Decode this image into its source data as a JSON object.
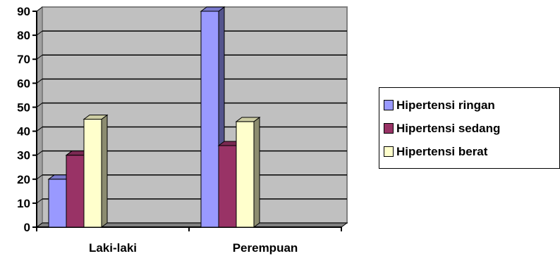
{
  "chart_data": {
    "type": "bar",
    "categories": [
      "Laki-laki",
      "Perempuan"
    ],
    "series": [
      {
        "name": "Hipertensi ringan",
        "values": [
          20,
          90
        ],
        "color": "#9999ff"
      },
      {
        "name": "Hipertensi sedang",
        "values": [
          30,
          34
        ],
        "color": "#993366"
      },
      {
        "name": "Hipertensi berat",
        "values": [
          45,
          44
        ],
        "color": "#ffffcc"
      }
    ],
    "ylim": [
      0,
      90
    ],
    "yticks": [
      "0",
      "10",
      "20",
      "30",
      "40",
      "50",
      "60",
      "70",
      "80",
      "90"
    ],
    "grid": true,
    "legend": "right",
    "three_d": true
  }
}
